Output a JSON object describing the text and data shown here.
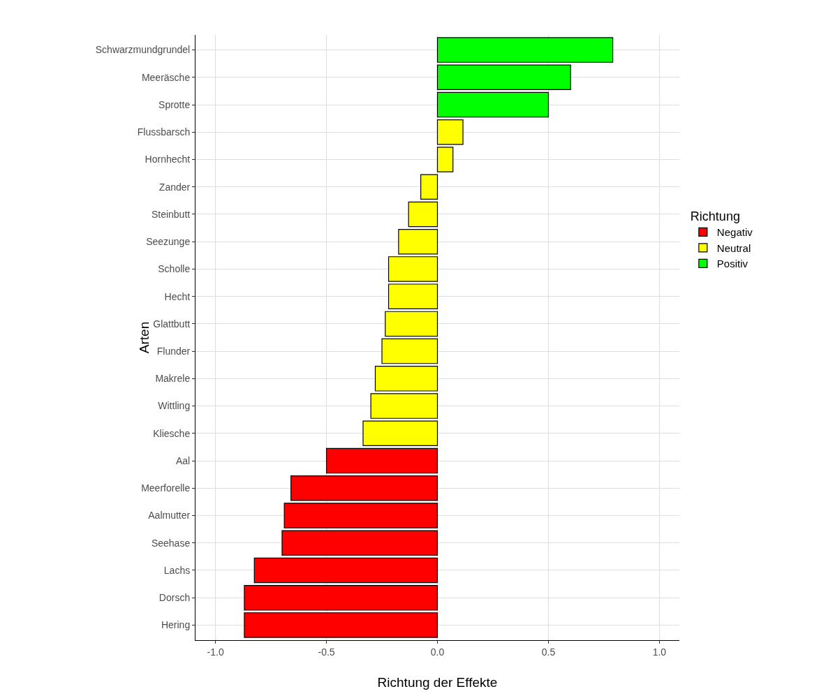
{
  "chart_data": {
    "type": "bar",
    "orientation": "horizontal",
    "stacked": true,
    "xlabel": "Richtung der Effekte",
    "ylabel": "Arten",
    "legend_title": "Richtung",
    "legend": "right",
    "grid": true,
    "categories": [
      "Schwarzmundgrundel",
      "Meeräsche",
      "Sprotte",
      "Flussbarsch",
      "Hornhecht",
      "Zander",
      "Steinbutt",
      "Seezunge",
      "Scholle",
      "Hecht",
      "Glattbutt",
      "Flunder",
      "Makrele",
      "Wittling",
      "Kliesche",
      "Aal",
      "Meerforelle",
      "Aalmutter",
      "Seehase",
      "Lachs",
      "Dorsch",
      "Hering"
    ],
    "series": [
      {
        "name": "Negativ",
        "color": "#ff0000",
        "values": [
          null,
          null,
          null,
          null,
          null,
          null,
          null,
          null,
          null,
          null,
          null,
          null,
          null,
          null,
          null,
          -0.5,
          -0.66,
          -0.69,
          -0.7,
          -0.825,
          -0.87,
          -0.87
        ]
      },
      {
        "name": "Neutral",
        "color": "#ffff00",
        "values": [
          null,
          null,
          null,
          0.115,
          0.07,
          -0.075,
          -0.13,
          -0.175,
          -0.22,
          -0.22,
          -0.235,
          -0.25,
          -0.28,
          -0.3,
          -0.335,
          null,
          null,
          null,
          null,
          null,
          null,
          null
        ]
      },
      {
        "name": "Positiv",
        "color": "#00ff00",
        "values": [
          0.79,
          0.6,
          0.5,
          null,
          null,
          null,
          null,
          null,
          null,
          null,
          null,
          null,
          null,
          null,
          null,
          null,
          null,
          null,
          null,
          null,
          null,
          null
        ]
      }
    ],
    "xlim": [
      -1.09,
      1.09
    ],
    "xticks": [
      {
        "value": -1,
        "label": "-1.0"
      },
      {
        "value": -0.5,
        "label": "-0.5"
      },
      {
        "value": 0,
        "label": "0.0"
      },
      {
        "value": 0.5,
        "label": "0.5"
      },
      {
        "value": 1,
        "label": "1.0"
      }
    ]
  }
}
